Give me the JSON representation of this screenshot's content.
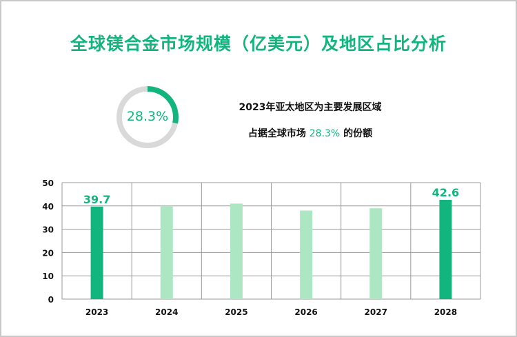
{
  "title": "全球镁合金市场规模（亿美元）及地区占比分析",
  "donut": {
    "value_label": "28.3%",
    "fraction": 0.283,
    "color": "#12b57d",
    "track_color": "#d9d9d9"
  },
  "info": {
    "line1": "2023年亚太地区为主要发展区域",
    "line2_prefix": "占据全球市场",
    "line2_value": "28.3%",
    "line2_suffix": "的份额"
  },
  "chart_data": {
    "type": "bar",
    "categories": [
      "2023",
      "2024",
      "2025",
      "2026",
      "2027",
      "2028"
    ],
    "values": [
      39.7,
      40,
      41,
      38,
      39,
      42.6
    ],
    "data_labels": {
      "2023": "39.7",
      "2028": "42.6"
    },
    "highlight_color": "#12b57d",
    "normal_color": "#ade6c2",
    "ylim": [
      0,
      50
    ],
    "yticks": [
      0,
      10,
      20,
      30,
      40,
      50
    ],
    "grid": true,
    "title": "",
    "xlabel": "",
    "ylabel": ""
  }
}
